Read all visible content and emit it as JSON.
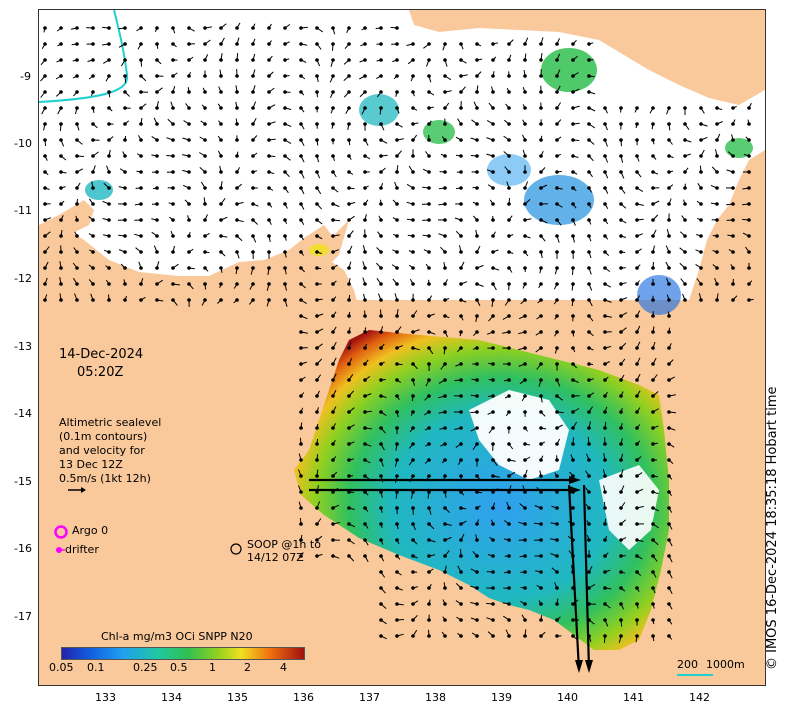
{
  "map": {
    "date": "14-Dec-2024",
    "time": "05:20Z",
    "copyright": "© IMOS 16-Dec-2024 18:35:18 Hobart time",
    "altimetry_note": [
      "Altimetric sealevel",
      "(0.1m contours)",
      "and velocity for",
      "13 Dec 12Z",
      "0.5m/s (1kt 12h)"
    ],
    "legend": {
      "argo": "Argo 0",
      "drifter": "drifter",
      "soop": [
        "SOOP @1h to",
        "14/12 07Z"
      ]
    },
    "scale_bar": {
      "label_left": "200",
      "label_right": "1000m"
    },
    "colorbar": {
      "title": "Chl-a mg/m3 OCi SNPP N20",
      "ticks": [
        "0.05",
        "0.1",
        "0.25",
        "0.5",
        "1",
        "2",
        "4"
      ]
    },
    "lon_ticks": [
      "133",
      "134",
      "135",
      "136",
      "137",
      "138",
      "139",
      "140",
      "141",
      "142"
    ],
    "lat_ticks": [
      "-9",
      "-10",
      "-11",
      "-12",
      "-13",
      "-14",
      "-15",
      "-16",
      "-17"
    ],
    "colors": {
      "land": "#f9c99c",
      "sea": "#ffffff",
      "bathy_contour": "#20d0d0",
      "argo": "#ff00ff",
      "vector": "#000000"
    }
  }
}
